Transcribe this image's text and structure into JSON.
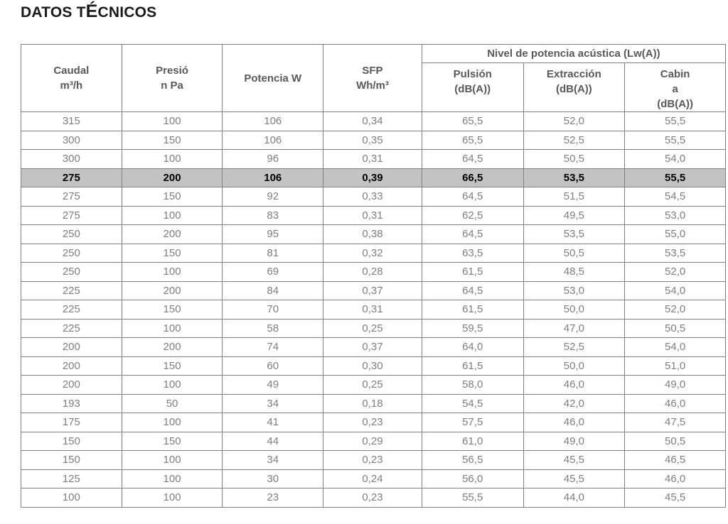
{
  "title_parts": {
    "pre": "DATOS T",
    "accent": "É",
    "post": "CNICOS"
  },
  "colors": {
    "title_text": "#1a1a1a",
    "header_text": "#595959",
    "cell_text": "#7f7f7f",
    "border": "#808080",
    "highlight_bg": "#c3c3c3"
  },
  "table": {
    "columns": [
      {
        "id": "caudal",
        "label_lines": [
          "Caudal",
          "m³/h"
        ]
      },
      {
        "id": "presion",
        "label_lines": [
          "Presió",
          "n Pa"
        ]
      },
      {
        "id": "potencia",
        "label_lines": [
          "Potencia W"
        ]
      },
      {
        "id": "sfp",
        "label_lines": [
          "SFP",
          "Wh/m³"
        ]
      }
    ],
    "group_header": "Nivel de potencia acústica (Lw(A))",
    "group_columns": [
      {
        "id": "pulsion",
        "label_lines": [
          "Pulsión",
          "(dB(A))"
        ]
      },
      {
        "id": "extraccion",
        "label_lines": [
          "Extracción",
          "(dB(A))"
        ]
      },
      {
        "id": "cabina",
        "label_lines": [
          "Cabin",
          "a",
          "(dB(A))"
        ]
      }
    ],
    "highlighted_row_index": 3,
    "rows": [
      [
        "315",
        "100",
        "106",
        "0,34",
        "65,5",
        "52,0",
        "55,5"
      ],
      [
        "300",
        "150",
        "106",
        "0,35",
        "65,5",
        "52,5",
        "55,5"
      ],
      [
        "300",
        "100",
        "96",
        "0,31",
        "64,5",
        "50,5",
        "54,0"
      ],
      [
        "275",
        "200",
        "106",
        "0,39",
        "66,5",
        "53,5",
        "55,5"
      ],
      [
        "275",
        "150",
        "92",
        "0,33",
        "64,5",
        "51,5",
        "54,5"
      ],
      [
        "275",
        "100",
        "83",
        "0,31",
        "62,5",
        "49,5",
        "53,0"
      ],
      [
        "250",
        "200",
        "95",
        "0,38",
        "64,5",
        "53,5",
        "55,0"
      ],
      [
        "250",
        "150",
        "81",
        "0,32",
        "63,5",
        "50,5",
        "53,5"
      ],
      [
        "250",
        "100",
        "69",
        "0,28",
        "61,5",
        "48,5",
        "52,0"
      ],
      [
        "225",
        "200",
        "84",
        "0,37",
        "64,5",
        "53,0",
        "54,0"
      ],
      [
        "225",
        "150",
        "70",
        "0,31",
        "61,5",
        "50,0",
        "52,0"
      ],
      [
        "225",
        "100",
        "58",
        "0,25",
        "59,5",
        "47,0",
        "50,5"
      ],
      [
        "200",
        "200",
        "74",
        "0,37",
        "64,0",
        "52,5",
        "54,0"
      ],
      [
        "200",
        "150",
        "60",
        "0,30",
        "61,5",
        "50,0",
        "51,0"
      ],
      [
        "200",
        "100",
        "49",
        "0,25",
        "58,0",
        "46,0",
        "49,0"
      ],
      [
        "193",
        "50",
        "34",
        "0,18",
        "54,5",
        "42,0",
        "46,0"
      ],
      [
        "175",
        "100",
        "41",
        "0,23",
        "57,5",
        "46,0",
        "47,5"
      ],
      [
        "150",
        "150",
        "44",
        "0,29",
        "61,0",
        "49,0",
        "50,5"
      ],
      [
        "150",
        "100",
        "34",
        "0,23",
        "56,5",
        "45,5",
        "46,5"
      ],
      [
        "125",
        "100",
        "30",
        "0,24",
        "56,0",
        "45,5",
        "46,0"
      ],
      [
        "100",
        "100",
        "23",
        "0,23",
        "55,5",
        "44,0",
        "45,5"
      ]
    ]
  }
}
